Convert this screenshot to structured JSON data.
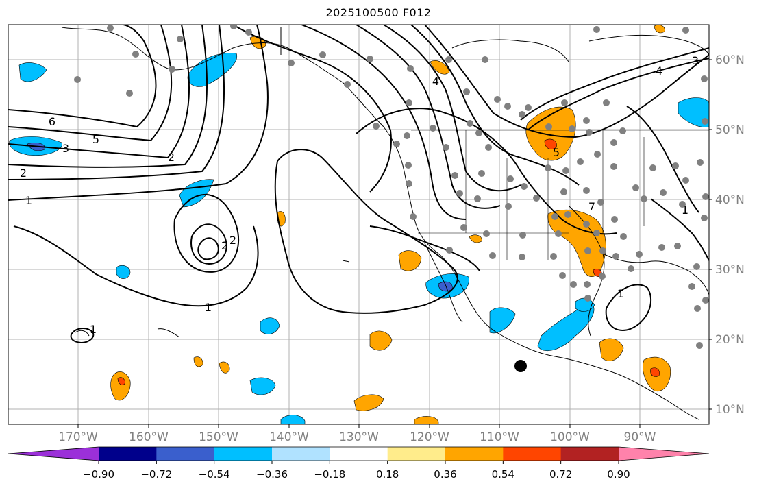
{
  "title": "2025100500 F012",
  "map": {
    "lon_labels": [
      "170°W",
      "160°W",
      "150°W",
      "140°W",
      "130°W",
      "120°W",
      "110°W",
      "100°W",
      "90°W"
    ],
    "lat_labels": [
      "60°N",
      "50°N",
      "40°N",
      "30°N",
      "20°N",
      "10°N"
    ],
    "contour_labels": [
      "6",
      "5",
      "2",
      "1",
      "3",
      "4",
      "2",
      "2",
      "1",
      "1",
      "7",
      "5",
      "4",
      "3",
      "2",
      "1",
      "1"
    ],
    "colors": {
      "gridline": "#b0b0b0",
      "coastline": "#000000",
      "station_dot": "#808080",
      "contour": "#000000"
    }
  },
  "colorbar": {
    "colors": [
      "#9b30d9",
      "#00008b",
      "#3a5fcd",
      "#00bfff",
      "#b0e2ff",
      "#ffffff",
      "#ffec8b",
      "#ffa500",
      "#ff4500",
      "#b22222",
      "#ff82ab"
    ],
    "tick_labels": [
      "−0.90",
      "−0.72",
      "−0.54",
      "−0.36",
      "−0.18",
      "0.18",
      "0.36",
      "0.54",
      "0.72",
      "0.90"
    ]
  }
}
